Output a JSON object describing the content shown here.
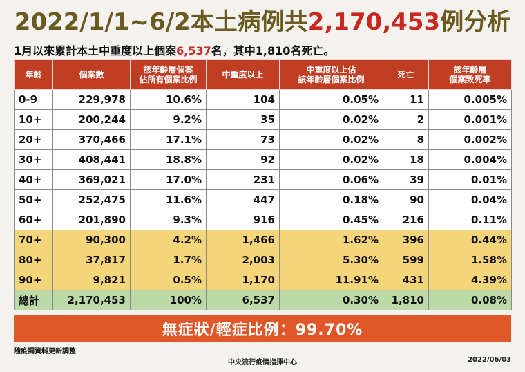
{
  "title": {
    "prefix": "2022/1/1~6/2本土病例共",
    "highlight": "2,170,453",
    "suffix": "例分析"
  },
  "subtitle": {
    "prefix": "1月以來累計本土中重度以上個案",
    "highlight": "6,537",
    "suffix": "名，其中1,810名死亡。"
  },
  "colors": {
    "header_bg": "#bf3e24",
    "highlight_rows": "#f5d57a",
    "total_row": "#bcd9a8",
    "banner_bg": "#e0572a",
    "title_text": "#6b5a1f",
    "emphasis_red": "#c8281f"
  },
  "table": {
    "headers": [
      "年齡",
      "個案數",
      "該年齡層個案\n佔所有個案比例",
      "中重度以上",
      "中重度以上佔\n該年齡層個案比例",
      "死亡",
      "該年齡層\n個案致死率"
    ],
    "rows": [
      {
        "age": "0-9",
        "cases": "229,978",
        "case_pct": "10.6%",
        "severe": "104",
        "severe_pct": "0.05%",
        "deaths": "11",
        "cfr": "0.005%",
        "highlight": false
      },
      {
        "age": "10+",
        "cases": "200,244",
        "case_pct": "9.2%",
        "severe": "35",
        "severe_pct": "0.02%",
        "deaths": "2",
        "cfr": "0.001%",
        "highlight": false
      },
      {
        "age": "20+",
        "cases": "370,466",
        "case_pct": "17.1%",
        "severe": "73",
        "severe_pct": "0.02%",
        "deaths": "8",
        "cfr": "0.002%",
        "highlight": false
      },
      {
        "age": "30+",
        "cases": "408,441",
        "case_pct": "18.8%",
        "severe": "92",
        "severe_pct": "0.02%",
        "deaths": "18",
        "cfr": "0.004%",
        "highlight": false
      },
      {
        "age": "40+",
        "cases": "369,021",
        "case_pct": "17.0%",
        "severe": "231",
        "severe_pct": "0.06%",
        "deaths": "39",
        "cfr": "0.01%",
        "highlight": false
      },
      {
        "age": "50+",
        "cases": "252,475",
        "case_pct": "11.6%",
        "severe": "447",
        "severe_pct": "0.18%",
        "deaths": "90",
        "cfr": "0.04%",
        "highlight": false
      },
      {
        "age": "60+",
        "cases": "201,890",
        "case_pct": "9.3%",
        "severe": "916",
        "severe_pct": "0.45%",
        "deaths": "216",
        "cfr": "0.11%",
        "highlight": false
      },
      {
        "age": "70+",
        "cases": "90,300",
        "case_pct": "4.2%",
        "severe": "1,466",
        "severe_pct": "1.62%",
        "deaths": "396",
        "cfr": "0.44%",
        "highlight": true
      },
      {
        "age": "80+",
        "cases": "37,817",
        "case_pct": "1.7%",
        "severe": "2,003",
        "severe_pct": "5.30%",
        "deaths": "599",
        "cfr": "1.58%",
        "highlight": true
      },
      {
        "age": "90+",
        "cases": "9,821",
        "case_pct": "0.5%",
        "severe": "1,170",
        "severe_pct": "11.91%",
        "deaths": "431",
        "cfr": "4.39%",
        "highlight": true
      }
    ],
    "total": {
      "age": "總計",
      "cases": "2,170,453",
      "case_pct": "100%",
      "severe": "6,537",
      "severe_pct": "0.30%",
      "deaths": "1,810",
      "cfr": "0.08%"
    }
  },
  "banner": "無症狀/輕症比例：99.70%",
  "note": "隨疫調資料更新調整",
  "footer": "中央流行疫情指揮中心",
  "date": "2022/06/03"
}
